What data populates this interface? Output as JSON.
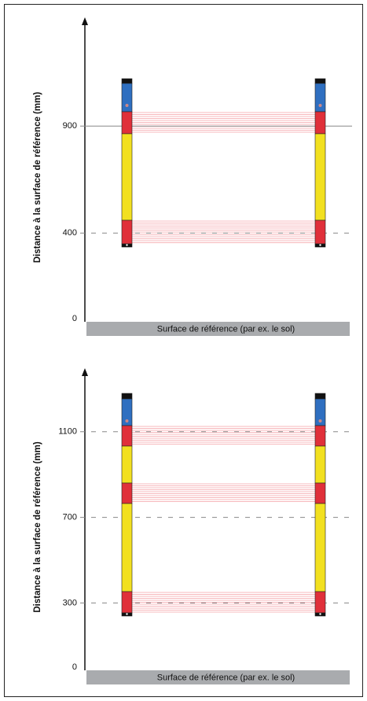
{
  "panels": [
    {
      "axis_label": "Distance à la surface de référence (mm)",
      "ticks": [
        900,
        400,
        0
      ],
      "ground_label": "Surface de référence (par ex. le sol)"
    },
    {
      "axis_label": "Distance à la surface de référence (mm)",
      "ticks": [
        1100,
        700,
        300,
        0
      ],
      "ground_label": "Surface de référence (par ex. le sol)"
    }
  ]
}
